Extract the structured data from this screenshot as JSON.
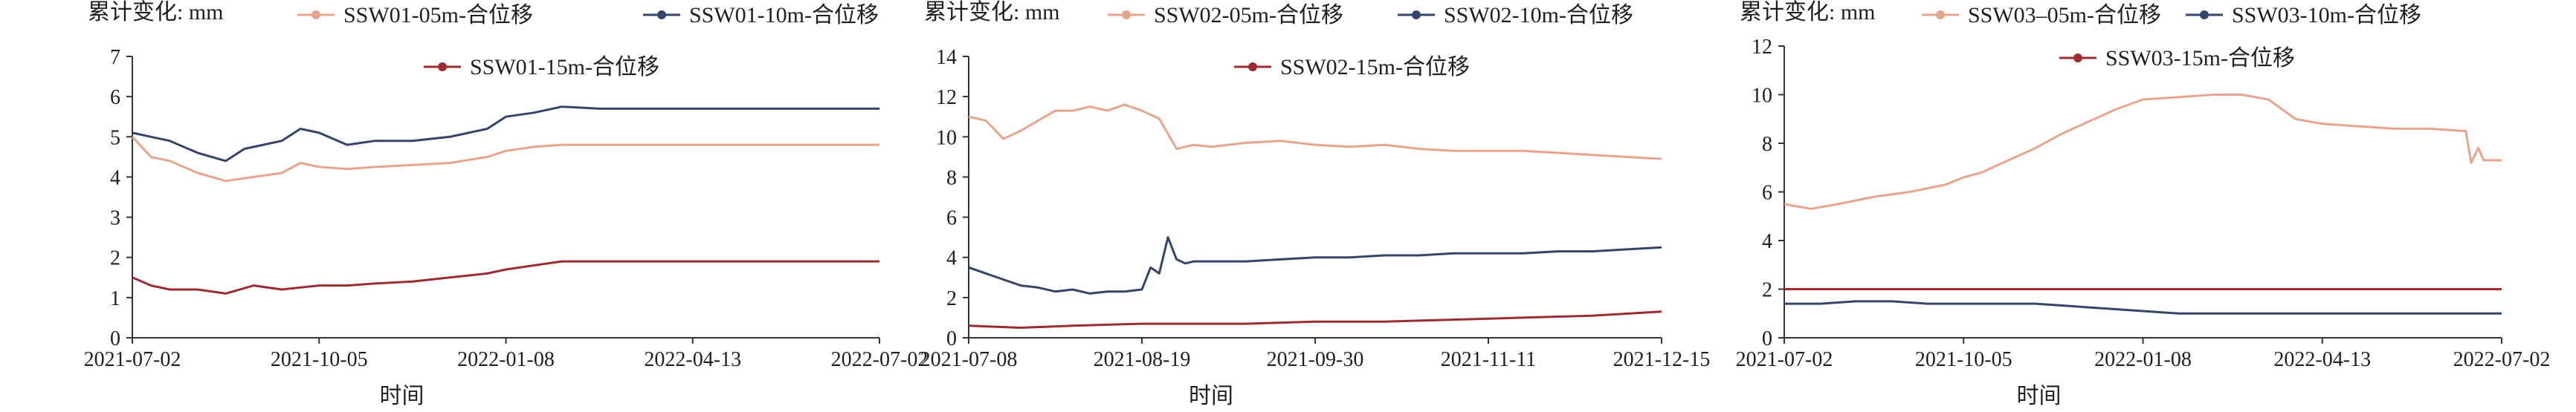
{
  "chart_data": [
    {
      "type": "line",
      "ylabel": "累计变化: mm",
      "xlabel": "时间",
      "ylim": [
        0,
        7
      ],
      "yticks": [
        0,
        1,
        2,
        3,
        4,
        5,
        6,
        7
      ],
      "xticks": [
        "2021-07-02",
        "2021-10-05",
        "2022-01-08",
        "2022-04-13",
        "2022-07-02"
      ],
      "series": [
        {
          "name": "SSW01-05m-合位移",
          "color": "#e6a58e",
          "x": [
            0,
            0.1,
            0.2,
            0.35,
            0.5,
            0.65,
            0.8,
            0.9,
            1.0,
            1.15,
            1.3,
            1.5,
            1.7,
            1.9,
            2.0,
            2.15,
            2.3,
            2.5,
            2.7,
            2.9,
            3.2,
            3.6,
            4.0
          ],
          "values": [
            5.0,
            4.5,
            4.4,
            4.1,
            3.9,
            4.0,
            4.1,
            4.35,
            4.25,
            4.2,
            4.25,
            4.3,
            4.35,
            4.5,
            4.65,
            4.75,
            4.8,
            4.8,
            4.8,
            4.8,
            4.8,
            4.8,
            4.8
          ]
        },
        {
          "name": "SSW01-10m-合位移",
          "color": "#34446b",
          "x": [
            0,
            0.1,
            0.2,
            0.35,
            0.5,
            0.6,
            0.7,
            0.8,
            0.9,
            1.0,
            1.15,
            1.3,
            1.5,
            1.7,
            1.9,
            2.0,
            2.15,
            2.3,
            2.5,
            2.7,
            2.9,
            3.2,
            3.6,
            4.0
          ],
          "values": [
            5.1,
            5.0,
            4.9,
            4.6,
            4.4,
            4.7,
            4.8,
            4.9,
            5.2,
            5.1,
            4.8,
            4.9,
            4.9,
            5.0,
            5.2,
            5.5,
            5.6,
            5.75,
            5.7,
            5.7,
            5.7,
            5.7,
            5.7,
            5.7
          ]
        },
        {
          "name": "SSW01-15m-合位移",
          "color": "#9b2d32",
          "x": [
            0,
            0.1,
            0.2,
            0.35,
            0.5,
            0.65,
            0.8,
            1.0,
            1.15,
            1.3,
            1.5,
            1.7,
            1.9,
            2.0,
            2.15,
            2.3,
            2.5,
            2.7,
            3.0,
            3.5,
            4.0
          ],
          "values": [
            1.5,
            1.3,
            1.2,
            1.2,
            1.1,
            1.3,
            1.2,
            1.3,
            1.3,
            1.35,
            1.4,
            1.5,
            1.6,
            1.7,
            1.8,
            1.9,
            1.9,
            1.9,
            1.9,
            1.9,
            1.9
          ]
        }
      ]
    },
    {
      "type": "line",
      "ylabel": "累计变化: mm",
      "xlabel": "时间",
      "ylim": [
        0,
        14
      ],
      "yticks": [
        0,
        2,
        4,
        6,
        8,
        10,
        12,
        14
      ],
      "xticks": [
        "2021-07-08",
        "2021-08-19",
        "2021-09-30",
        "2021-11-11",
        "2021-12-15"
      ],
      "series": [
        {
          "name": "SSW02-05m-合位移",
          "color": "#e6a58e",
          "x": [
            0,
            0.1,
            0.2,
            0.3,
            0.4,
            0.5,
            0.6,
            0.7,
            0.8,
            0.9,
            1.0,
            1.1,
            1.2,
            1.3,
            1.4,
            1.6,
            1.8,
            2.0,
            2.2,
            2.4,
            2.6,
            2.8,
            3.0,
            3.2,
            3.4,
            3.6,
            3.8,
            4.0
          ],
          "values": [
            11.0,
            10.8,
            9.9,
            10.3,
            10.8,
            11.3,
            11.3,
            11.5,
            11.3,
            11.6,
            11.3,
            10.9,
            9.4,
            9.6,
            9.5,
            9.7,
            9.8,
            9.6,
            9.5,
            9.6,
            9.4,
            9.3,
            9.3,
            9.3,
            9.2,
            9.1,
            9.0,
            8.9
          ]
        },
        {
          "name": "SSW02-10m-合位移",
          "color": "#34446b",
          "x": [
            0,
            0.1,
            0.2,
            0.3,
            0.4,
            0.5,
            0.6,
            0.7,
            0.8,
            0.9,
            1.0,
            1.05,
            1.1,
            1.15,
            1.2,
            1.25,
            1.3,
            1.4,
            1.6,
            1.8,
            2.0,
            2.2,
            2.4,
            2.6,
            2.8,
            3.0,
            3.2,
            3.4,
            3.6,
            3.8,
            4.0
          ],
          "values": [
            3.5,
            3.2,
            2.9,
            2.6,
            2.5,
            2.3,
            2.4,
            2.2,
            2.3,
            2.3,
            2.4,
            3.5,
            3.2,
            5.0,
            3.9,
            3.7,
            3.8,
            3.8,
            3.8,
            3.9,
            4.0,
            4.0,
            4.1,
            4.1,
            4.2,
            4.2,
            4.2,
            4.3,
            4.3,
            4.4,
            4.5
          ]
        },
        {
          "name": "SSW02-15m-合位移",
          "color": "#9b2d32",
          "x": [
            0,
            0.3,
            0.6,
            1.0,
            1.3,
            1.6,
            2.0,
            2.4,
            2.8,
            3.2,
            3.6,
            3.8,
            4.0
          ],
          "values": [
            0.6,
            0.5,
            0.6,
            0.7,
            0.7,
            0.7,
            0.8,
            0.8,
            0.9,
            1.0,
            1.1,
            1.2,
            1.3
          ]
        }
      ]
    },
    {
      "type": "line",
      "ylabel": "累计变化: mm",
      "xlabel": "时间",
      "ylim": [
        0,
        12
      ],
      "yticks": [
        0,
        2,
        4,
        6,
        8,
        10,
        12
      ],
      "xticks": [
        "2021-07-02",
        "2021-10-05",
        "2022-01-08",
        "2022-04-13",
        "2022-07-02"
      ],
      "series": [
        {
          "name": "SSW03–05m-合位移",
          "color": "#e6a58e",
          "x": [
            0,
            0.15,
            0.3,
            0.5,
            0.7,
            0.9,
            1.0,
            1.1,
            1.25,
            1.4,
            1.55,
            1.7,
            1.85,
            2.0,
            2.2,
            2.4,
            2.55,
            2.7,
            2.85,
            3.0,
            3.2,
            3.4,
            3.6,
            3.8,
            3.83,
            3.87,
            3.9,
            4.0
          ],
          "values": [
            5.5,
            5.3,
            5.5,
            5.8,
            6.0,
            6.3,
            6.6,
            6.8,
            7.3,
            7.8,
            8.4,
            8.9,
            9.4,
            9.8,
            9.9,
            10.0,
            10.0,
            9.8,
            9.0,
            8.8,
            8.7,
            8.6,
            8.6,
            8.5,
            7.2,
            7.8,
            7.3,
            7.3
          ]
        },
        {
          "name": "SSW03-10m-合位移",
          "color": "#34446b",
          "x": [
            0,
            0.2,
            0.4,
            0.6,
            0.8,
            1.0,
            1.2,
            1.4,
            1.6,
            1.8,
            2.0,
            2.2,
            2.4,
            2.8,
            3.2,
            3.6,
            4.0
          ],
          "values": [
            1.4,
            1.4,
            1.5,
            1.5,
            1.4,
            1.4,
            1.4,
            1.4,
            1.3,
            1.2,
            1.1,
            1.0,
            1.0,
            1.0,
            1.0,
            1.0,
            1.0
          ]
        },
        {
          "name": "SSW03-15m-合位移",
          "color": "#9b2d32",
          "x": [
            0,
            4.0
          ],
          "values": [
            2.0,
            2.0
          ]
        }
      ]
    }
  ]
}
